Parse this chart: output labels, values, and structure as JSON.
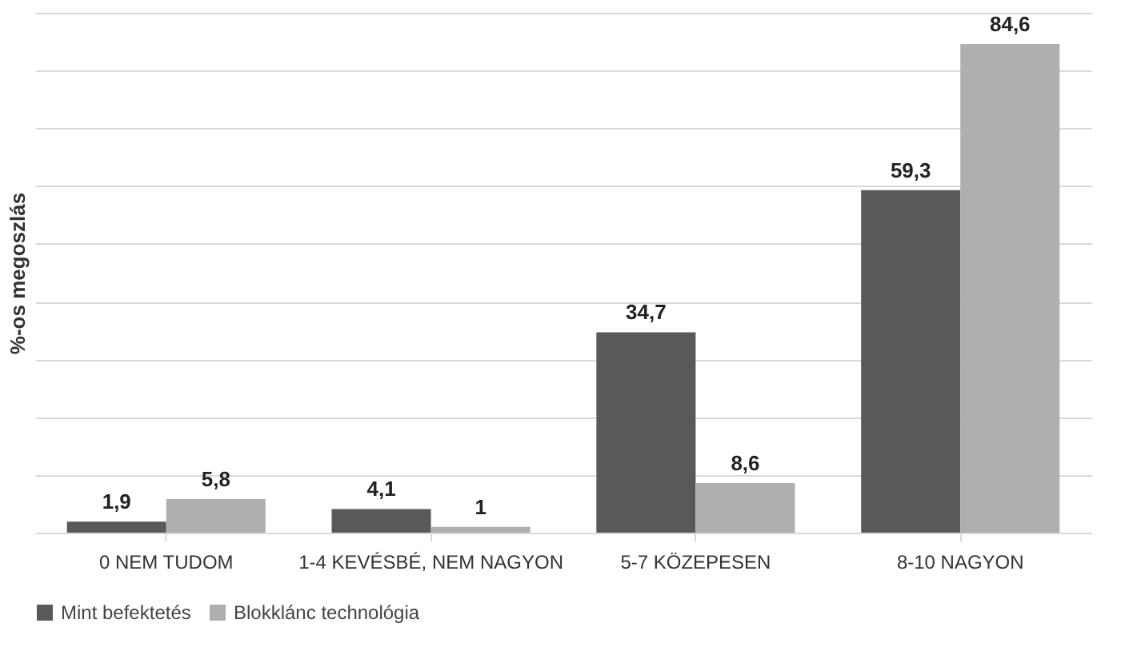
{
  "chart_data": {
    "type": "bar",
    "ylabel": "%-os megoszlás",
    "categories": [
      "0 NEM TUDOM",
      "1-4 KEVÉSBÉ, NEM NAGYON",
      "5-7 KÖZEPESEN",
      "8-10 NAGYON"
    ],
    "series": [
      {
        "name": "Mint befektetés",
        "color": "#595959",
        "values": [
          1.9,
          4.1,
          34.7,
          59.3
        ],
        "value_labels": [
          "1,9",
          "4,1",
          "34,7",
          "59,3"
        ]
      },
      {
        "name": "Blokklánc technológia",
        "color": "#afafaf",
        "values": [
          5.8,
          1,
          8.6,
          84.6
        ],
        "value_labels": [
          "5,8",
          "1",
          "8,6",
          "84,6"
        ]
      }
    ],
    "tick_labels": "x",
    "grid": "y",
    "legend": "bottom"
  }
}
